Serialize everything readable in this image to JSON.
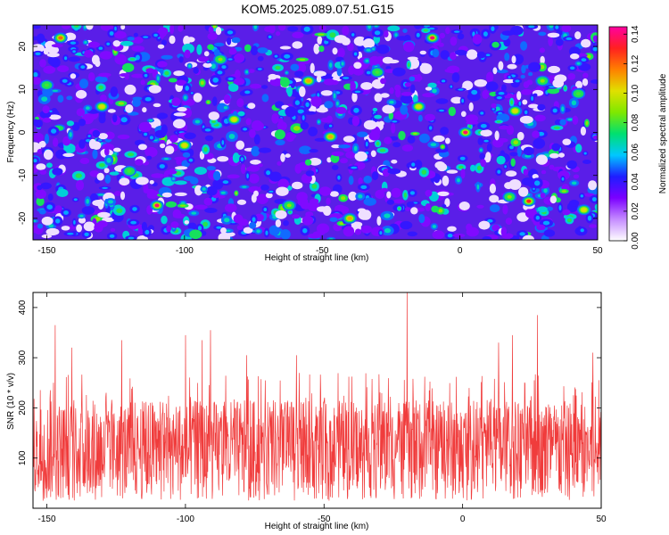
{
  "title": "KOM5.2025.089.07.51.G15",
  "chart_data": [
    {
      "type": "heatmap",
      "title": "KOM5.2025.089.07.51.G15",
      "xlabel": "Height of straight line (km)",
      "ylabel": "Frequency (Hz)",
      "xlim": [
        -155,
        50
      ],
      "ylim": [
        -25,
        25
      ],
      "xticks": [
        -150,
        -100,
        -50,
        0,
        50
      ],
      "yticks": [
        -20,
        -10,
        0,
        10,
        20
      ],
      "colorbar": {
        "label": "Normalized spectral amplitude",
        "range": [
          0,
          0.145
        ],
        "ticks": [
          "0.00",
          "0.02",
          "0.04",
          "0.06",
          "0.08",
          "0.10",
          "0.12",
          "0.14"
        ],
        "colors": [
          "#ffffff",
          "#c58cff",
          "#7b00ff",
          "#1e1eff",
          "#00c8ff",
          "#00e070",
          "#7fe800",
          "#e0e000",
          "#ff8000",
          "#ff2020",
          "#ff00a0"
        ]
      },
      "peaks": [
        {
          "x": -110,
          "y": -17,
          "value": 0.14
        },
        {
          "x": -10,
          "y": 22,
          "value": 0.14
        },
        {
          "x": 2,
          "y": 0,
          "value": 0.14
        },
        {
          "x": 25,
          "y": -16,
          "value": 0.13
        },
        {
          "x": -145,
          "y": 22,
          "value": 0.12
        },
        {
          "x": -40,
          "y": -20,
          "value": 0.11
        },
        {
          "x": -55,
          "y": 12,
          "value": 0.11
        },
        {
          "x": -47,
          "y": -1,
          "value": 0.11
        },
        {
          "x": -100,
          "y": -3,
          "value": 0.1
        },
        {
          "x": -15,
          "y": 6,
          "value": 0.1
        },
        {
          "x": 20,
          "y": 5,
          "value": 0.1
        },
        {
          "x": -130,
          "y": 6,
          "value": 0.1
        },
        {
          "x": -82,
          "y": 3,
          "value": 0.1
        },
        {
          "x": 45,
          "y": -18,
          "value": 0.1
        },
        {
          "x": 18,
          "y": -15,
          "value": 0.09
        },
        {
          "x": -87,
          "y": 17,
          "value": 0.09
        },
        {
          "x": -62,
          "y": -17,
          "value": 0.09
        },
        {
          "x": 30,
          "y": 12,
          "value": 0.09
        },
        {
          "x": -150,
          "y": 11,
          "value": 0.08
        },
        {
          "x": -120,
          "y": -9,
          "value": 0.08
        },
        {
          "x": 43,
          "y": 9,
          "value": 0.08
        },
        {
          "x": -30,
          "y": 14,
          "value": 0.08
        }
      ]
    },
    {
      "type": "line",
      "xlabel": "Height of straight line (km)",
      "ylabel": "SNR (10 * v/v)",
      "xlim": [
        -155,
        50
      ],
      "ylim": [
        0,
        430
      ],
      "xticks": [
        -150,
        -100,
        -50,
        0,
        50
      ],
      "yticks": [
        100,
        200,
        300,
        400
      ],
      "series": [
        {
          "name": "SNR",
          "color": "#f03c3c",
          "x_range": [
            -155,
            50
          ],
          "n_samples": 1640,
          "baseline_mean": 120,
          "spikes": [
            {
              "x": -147,
              "value": 365
            },
            {
              "x": -141,
              "value": 320
            },
            {
              "x": -123,
              "value": 335
            },
            {
              "x": -100,
              "value": 345
            },
            {
              "x": -94,
              "value": 335
            },
            {
              "x": -91,
              "value": 355
            },
            {
              "x": -78,
              "value": 305
            },
            {
              "x": -60,
              "value": 305
            },
            {
              "x": -20,
              "value": 430
            },
            {
              "x": 13,
              "value": 330
            },
            {
              "x": 18,
              "value": 345
            },
            {
              "x": 27,
              "value": 385
            },
            {
              "x": 47,
              "value": 310
            }
          ]
        }
      ]
    }
  ]
}
